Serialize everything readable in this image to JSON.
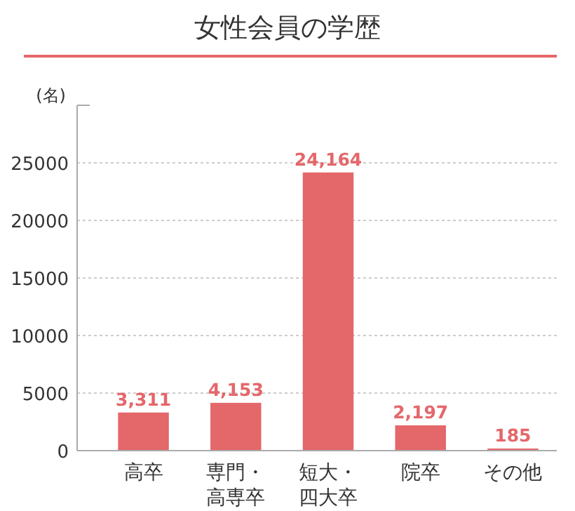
{
  "chart_data": {
    "type": "bar",
    "title": "女性会員の学歴",
    "ylabel": "(名)",
    "categories": [
      "高卒",
      "専門・高専卒",
      "短大・四大卒",
      "院卒",
      "その他"
    ],
    "values": [
      3311,
      4153,
      24164,
      2197,
      185
    ],
    "color": "#e4676a",
    "value_labels": [
      "3,311",
      "4,153",
      "24,164",
      "2,197",
      "185"
    ],
    "ylim": [
      0,
      30000
    ],
    "yticks": [
      0,
      5000,
      10000,
      15000,
      20000,
      25000
    ],
    "grid": "y"
  }
}
